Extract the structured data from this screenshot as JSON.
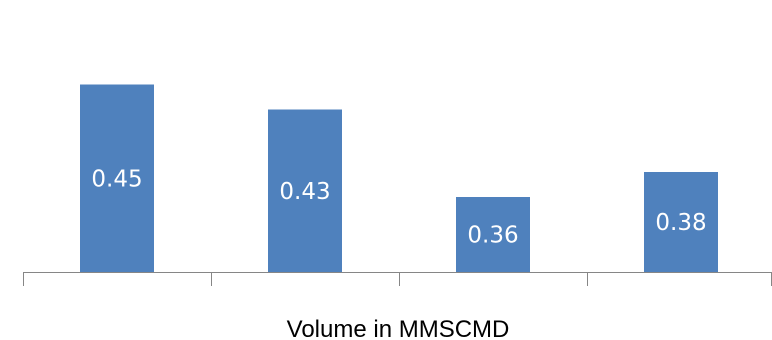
{
  "chart_data": {
    "type": "bar",
    "categories": [
      "",
      "",
      "",
      ""
    ],
    "values": [
      0.45,
      0.43,
      0.36,
      0.38
    ],
    "data_labels": [
      "0.45",
      "0.43",
      "0.36",
      "0.38"
    ],
    "title": "",
    "xlabel": "Volume in MMSCMD",
    "ylabel": "",
    "ylim": [
      0.3,
      0.5
    ],
    "grid": false,
    "legend": "none",
    "bar_color": "#4F81BD",
    "axis_color": "#868686"
  }
}
